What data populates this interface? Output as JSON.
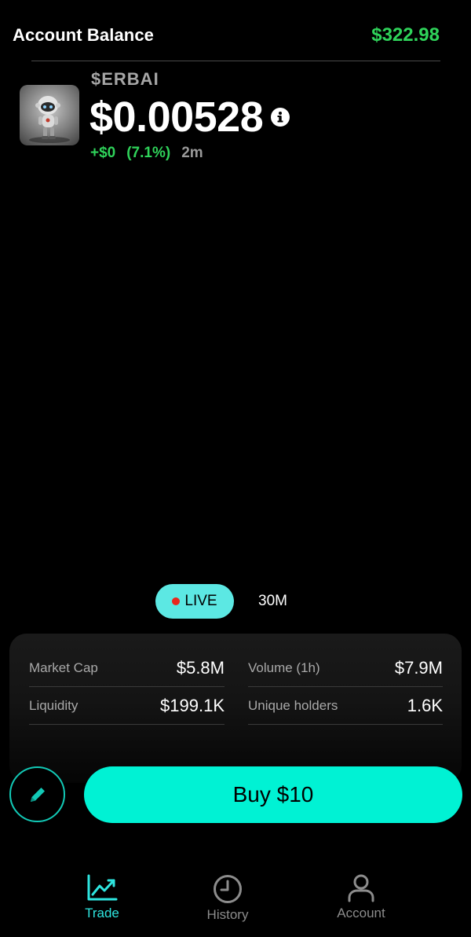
{
  "header": {
    "title": "Account Balance",
    "balance": "$322.98"
  },
  "token": {
    "symbol": "$ERBAI",
    "price": "$0.00528",
    "change_abs": "+$0",
    "change_pct": "(7.1%)",
    "age": "2m",
    "avatar_icon": "robot-avatar"
  },
  "intervals": {
    "live_label": "LIVE",
    "other_label": "30M"
  },
  "stats": [
    {
      "label": "Market Cap",
      "value": "$5.8M"
    },
    {
      "label": "Volume (1h)",
      "value": "$7.9M"
    },
    {
      "label": "Liquidity",
      "value": "$199.1K"
    },
    {
      "label": "Unique holders",
      "value": "1.6K"
    }
  ],
  "actions": {
    "buy_label": "Buy $10",
    "edit_icon": "pencil-icon"
  },
  "nav": [
    {
      "label": "Trade",
      "icon": "chart-trend-icon",
      "active": true
    },
    {
      "label": "History",
      "icon": "clock-icon",
      "active": false
    },
    {
      "label": "Account",
      "icon": "user-icon",
      "active": false
    }
  ],
  "colors": {
    "positive": "#2fd35a",
    "accent": "#00f2d4",
    "live_bg": "#5ce8e3",
    "live_dot": "#e8271d",
    "nav_active": "#2ee6e0"
  }
}
